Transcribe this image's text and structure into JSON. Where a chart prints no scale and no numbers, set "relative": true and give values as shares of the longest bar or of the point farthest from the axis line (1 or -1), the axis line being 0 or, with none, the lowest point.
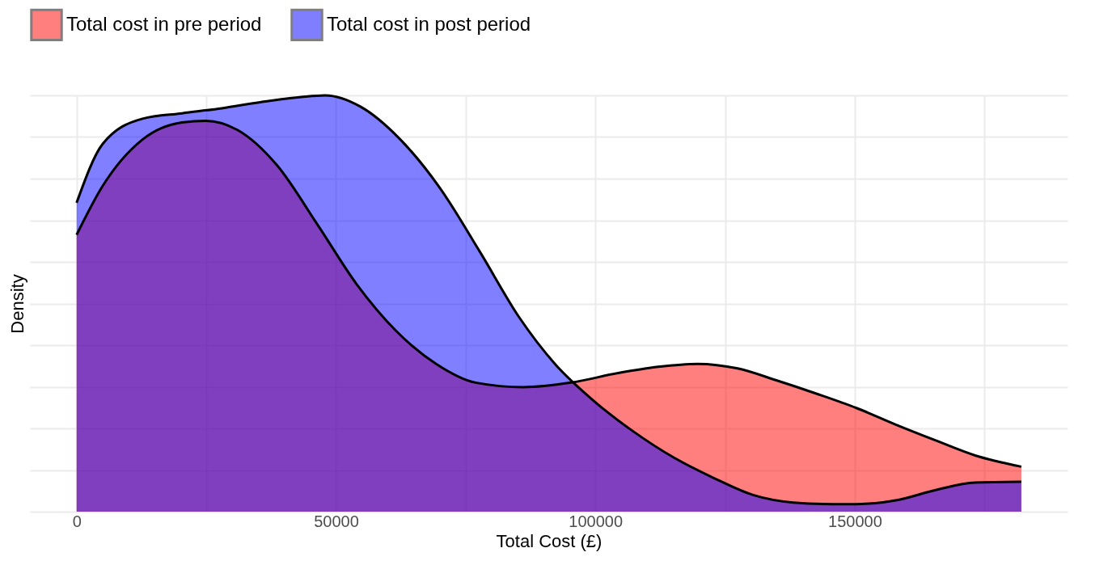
{
  "chart_data": {
    "type": "area",
    "xlabel": "Total Cost (£)",
    "ylabel": "Density",
    "relative": true,
    "grid": true,
    "legend": "top",
    "line_style": "solid",
    "xlim": [
      -9000,
      191000
    ],
    "xticks": [
      0,
      {
        "value": 25000,
        "label": null
      },
      50000,
      {
        "value": 75000,
        "label": null
      },
      100000,
      {
        "value": 125000,
        "label": null
      },
      150000,
      {
        "value": 175000,
        "label": null
      }
    ],
    "series": [
      {
        "name": "Total cost in pre period",
        "color": "#ff0000",
        "x": [
          0,
          5000,
          12700,
          20300,
          24900,
          31000,
          38700,
          46300,
          54000,
          61600,
          69300,
          76900,
          86100,
          95300,
          104400,
          112100,
          119700,
          127400,
          135000,
          142700,
          150300,
          157900,
          165600,
          173200,
          182100
        ],
        "values": [
          0.665,
          0.782,
          0.894,
          0.935,
          0.939,
          0.917,
          0.831,
          0.692,
          0.546,
          0.434,
          0.355,
          0.31,
          0.299,
          0.31,
          0.333,
          0.348,
          0.355,
          0.344,
          0.315,
          0.283,
          0.249,
          0.209,
          0.171,
          0.135,
          0.108
        ]
      },
      {
        "name": "Total cost in post period",
        "color": "#0000ff",
        "x": [
          0,
          5000,
          12700,
          20300,
          28000,
          35600,
          43300,
          47900,
          54700,
          62400,
          70000,
          77700,
          85300,
          92200,
          99800,
          107500,
          115100,
          122800,
          130400,
          138100,
          145700,
          150300,
          157900,
          165600,
          173200,
          182100
        ],
        "values": [
          0.742,
          0.883,
          0.944,
          0.957,
          0.969,
          0.984,
          0.996,
          1,
          0.973,
          0.894,
          0.778,
          0.625,
          0.467,
          0.355,
          0.265,
          0.191,
          0.13,
          0.081,
          0.04,
          0.022,
          0.018,
          0.018,
          0.027,
          0.052,
          0.07,
          0.072
        ]
      }
    ]
  }
}
